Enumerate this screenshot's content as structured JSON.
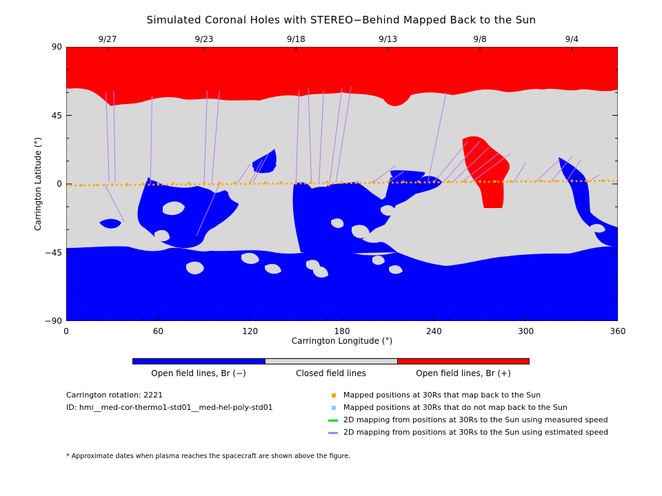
{
  "chart_data": {
    "type": "heatmap",
    "title": "Simulated Coronal Holes with STEREO−Behind Mapped Back to the Sun",
    "xlabel": "Carrington Longitude (°)",
    "ylabel": "Carrington Latitude (°)",
    "xlim": [
      0,
      360
    ],
    "ylim": [
      -90,
      90
    ],
    "x_ticks": [
      "0",
      "60",
      "120",
      "180",
      "240",
      "300",
      "360"
    ],
    "y_ticks": [
      "90",
      "45",
      "0",
      "−45",
      "−90"
    ],
    "top_axis_dates": [
      {
        "label": "9/27",
        "longitude": 27
      },
      {
        "label": "9/23",
        "longitude": 90
      },
      {
        "label": "9/18",
        "longitude": 150
      },
      {
        "label": "9/13",
        "longitude": 210
      },
      {
        "label": "9/8",
        "longitude": 270
      },
      {
        "label": "9/4",
        "longitude": 330
      }
    ],
    "colorbar": [
      {
        "label": "Open field lines, Br (−)",
        "color": "#0000ff"
      },
      {
        "label": "Closed field lines",
        "color": "#d8d8d8"
      },
      {
        "label": "Open field lines, Br (+)",
        "color": "#ff0000"
      }
    ],
    "mapped_positions": [
      [
        0,
        -1.0
      ],
      [
        10,
        -0.8
      ],
      [
        20,
        -0.6
      ],
      [
        30,
        -0.4
      ],
      [
        40,
        -0.2
      ],
      [
        50,
        0.0
      ],
      [
        60,
        0.2
      ],
      [
        70,
        0.4
      ],
      [
        80,
        0.5
      ],
      [
        90,
        0.6
      ],
      [
        100,
        0.7
      ],
      [
        110,
        0.8
      ],
      [
        120,
        0.9
      ],
      [
        130,
        1.0
      ],
      [
        140,
        1.0
      ],
      [
        150,
        1.1
      ],
      [
        160,
        1.1
      ],
      [
        170,
        1.2
      ],
      [
        180,
        1.2
      ],
      [
        190,
        1.3
      ],
      [
        200,
        1.3
      ],
      [
        210,
        1.4
      ],
      [
        220,
        1.4
      ],
      [
        230,
        1.5
      ],
      [
        240,
        1.5
      ],
      [
        250,
        1.6
      ],
      [
        260,
        1.6
      ],
      [
        270,
        1.7
      ],
      [
        280,
        1.7
      ],
      [
        290,
        1.8
      ],
      [
        300,
        1.8
      ],
      [
        310,
        1.9
      ],
      [
        320,
        1.9
      ],
      [
        330,
        2.0
      ],
      [
        340,
        2.0
      ],
      [
        350,
        2.1
      ],
      [
        360,
        2.1
      ]
    ]
  },
  "info": {
    "rotation": "Carrington rotation: 2221",
    "id": "ID: hmi__med-cor-thermo1-std01__med-hel-poly-std01"
  },
  "legend": [
    {
      "label": "Mapped positions at 30Rs that map back to the Sun",
      "symbol": "square",
      "color": "#ffa500"
    },
    {
      "label": "Mapped positions at 30Rs that do not map back to the Sun",
      "symbol": "square",
      "color": "#87cefa"
    },
    {
      "label": "2D mapping from positions at 30Rs to the Sun using measured speed",
      "symbol": "line",
      "color": "#00dd00"
    },
    {
      "label": "2D mapping from positions at 30Rs to the Sun using estimated speed",
      "symbol": "line",
      "color": "#b57cf0"
    }
  ],
  "footnote": "* Approximate dates when plasma reaches the spacecraft are shown above the figure."
}
